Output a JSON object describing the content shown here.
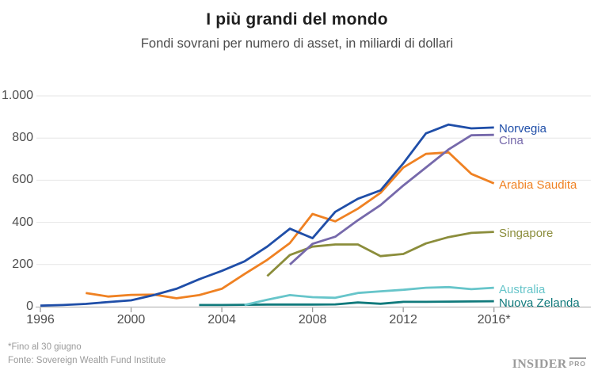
{
  "chart_data": {
    "type": "line",
    "title": "I più grandi del mondo",
    "subtitle": "Fondi sovrani per numero di asset, in miliardi di dollari",
    "unit": "miliardi di dollari (USD)",
    "grid": true,
    "legend_position": "labels-at-line-ends-right",
    "x_axis": {
      "range": [
        1996,
        2016
      ],
      "ticks": [
        1996,
        2000,
        2004,
        2008,
        2012,
        2016
      ],
      "tick_labels": [
        "1996",
        "2000",
        "2004",
        "2008",
        "2012",
        "2016*"
      ]
    },
    "y_axis": {
      "range": [
        0,
        1000
      ],
      "ticks": [
        0,
        200,
        400,
        600,
        800,
        1000
      ],
      "tick_labels": [
        "0",
        "200",
        "400",
        "600",
        "800",
        "1.000"
      ]
    },
    "series": [
      {
        "name": "Norvegia",
        "color": "#1f4ea8",
        "x": [
          1996,
          1997,
          1998,
          1999,
          2000,
          2001,
          2002,
          2003,
          2004,
          2005,
          2006,
          2007,
          2008,
          2009,
          2010,
          2011,
          2012,
          2013,
          2014,
          2015,
          2016
        ],
        "y": [
          5,
          8,
          13,
          22,
          30,
          55,
          85,
          130,
          170,
          215,
          285,
          370,
          325,
          450,
          512,
          552,
          680,
          822,
          864,
          846,
          850
        ]
      },
      {
        "name": "Cina",
        "color": "#7669ab",
        "x": [
          2007,
          2008,
          2009,
          2010,
          2011,
          2012,
          2013,
          2014,
          2015,
          2016
        ],
        "y": [
          200,
          298,
          332,
          410,
          482,
          575,
          660,
          746,
          813,
          815
        ]
      },
      {
        "name": "Arabia Saudita",
        "color": "#ef8122",
        "x": [
          1998,
          1999,
          2000,
          2001,
          2002,
          2003,
          2004,
          2005,
          2006,
          2007,
          2008,
          2009,
          2010,
          2011,
          2012,
          2013,
          2014,
          2015,
          2016
        ],
        "y": [
          65,
          48,
          56,
          57,
          40,
          55,
          85,
          155,
          222,
          302,
          440,
          405,
          465,
          540,
          660,
          725,
          732,
          630,
          585
        ]
      },
      {
        "name": "Singapore",
        "color": "#8b8d3b",
        "x": [
          2006,
          2007,
          2008,
          2009,
          2010,
          2011,
          2012,
          2013,
          2014,
          2015,
          2016
        ],
        "y": [
          145,
          245,
          285,
          295,
          295,
          240,
          250,
          300,
          330,
          350,
          355
        ]
      },
      {
        "name": "Australia",
        "color": "#67c5ca",
        "x": [
          2005,
          2006,
          2007,
          2008,
          2009,
          2010,
          2011,
          2012,
          2013,
          2014,
          2015,
          2016
        ],
        "y": [
          8,
          33,
          55,
          45,
          42,
          65,
          73,
          80,
          90,
          93,
          83,
          90
        ]
      },
      {
        "name": "Nuova Zelanda",
        "color": "#117a7c",
        "x": [
          2003,
          2004,
          2005,
          2006,
          2007,
          2008,
          2009,
          2010,
          2011,
          2012,
          2013,
          2014,
          2015,
          2016
        ],
        "y": [
          8,
          8,
          9,
          10,
          10,
          10,
          11,
          20,
          14,
          23,
          23,
          24,
          25,
          26
        ]
      }
    ]
  },
  "footer": {
    "note": "*Fino al 30 giugno",
    "source": "Fonte: Sovereign Wealth Fund Institute",
    "logo_main": "INSIDER",
    "logo_suffix": "PRO"
  }
}
